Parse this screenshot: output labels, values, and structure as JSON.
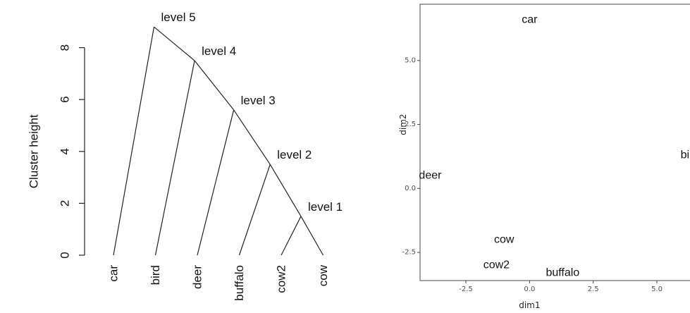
{
  "chart_data": [
    {
      "type": "dendrogram",
      "ylabel": "Cluster height",
      "yticks": [
        0,
        2,
        4,
        6,
        8
      ],
      "leaves": [
        "car",
        "bird",
        "deer",
        "buffalo",
        "cow2",
        "cow"
      ],
      "merges": [
        {
          "label": "level 1",
          "height": 1.5,
          "joins": [
            "cow2",
            "cow"
          ]
        },
        {
          "label": "level 2",
          "height": 3.5,
          "joins": [
            "buffalo",
            "level 1"
          ]
        },
        {
          "label": "level 3",
          "height": 5.6,
          "joins": [
            "deer",
            "level 2"
          ]
        },
        {
          "label": "level 4",
          "height": 7.5,
          "joins": [
            "bird",
            "level 3"
          ]
        },
        {
          "label": "level 5",
          "height": 8.8,
          "joins": [
            "car",
            "level 4"
          ]
        }
      ]
    },
    {
      "type": "scatter",
      "xlabel": "dim1",
      "ylabel": "dim2",
      "xticks": [
        "-2.5",
        "0.0",
        "2.5",
        "5.0"
      ],
      "yticks": [
        "-2.5",
        "0.0",
        "2.5",
        "5.0"
      ],
      "xlim": [
        -4.3,
        6.3
      ],
      "ylim": [
        -3.6,
        7.2
      ],
      "points": [
        {
          "label": "car",
          "x": 0.0,
          "y": 6.6
        },
        {
          "label": "bird",
          "x": 6.3,
          "y": 1.3
        },
        {
          "label": "deer",
          "x": -3.9,
          "y": 0.5
        },
        {
          "label": "cow",
          "x": -1.0,
          "y": -2.0
        },
        {
          "label": "cow2",
          "x": -1.3,
          "y": -3.0
        },
        {
          "label": "buffalo",
          "x": 1.3,
          "y": -3.3
        }
      ]
    }
  ]
}
